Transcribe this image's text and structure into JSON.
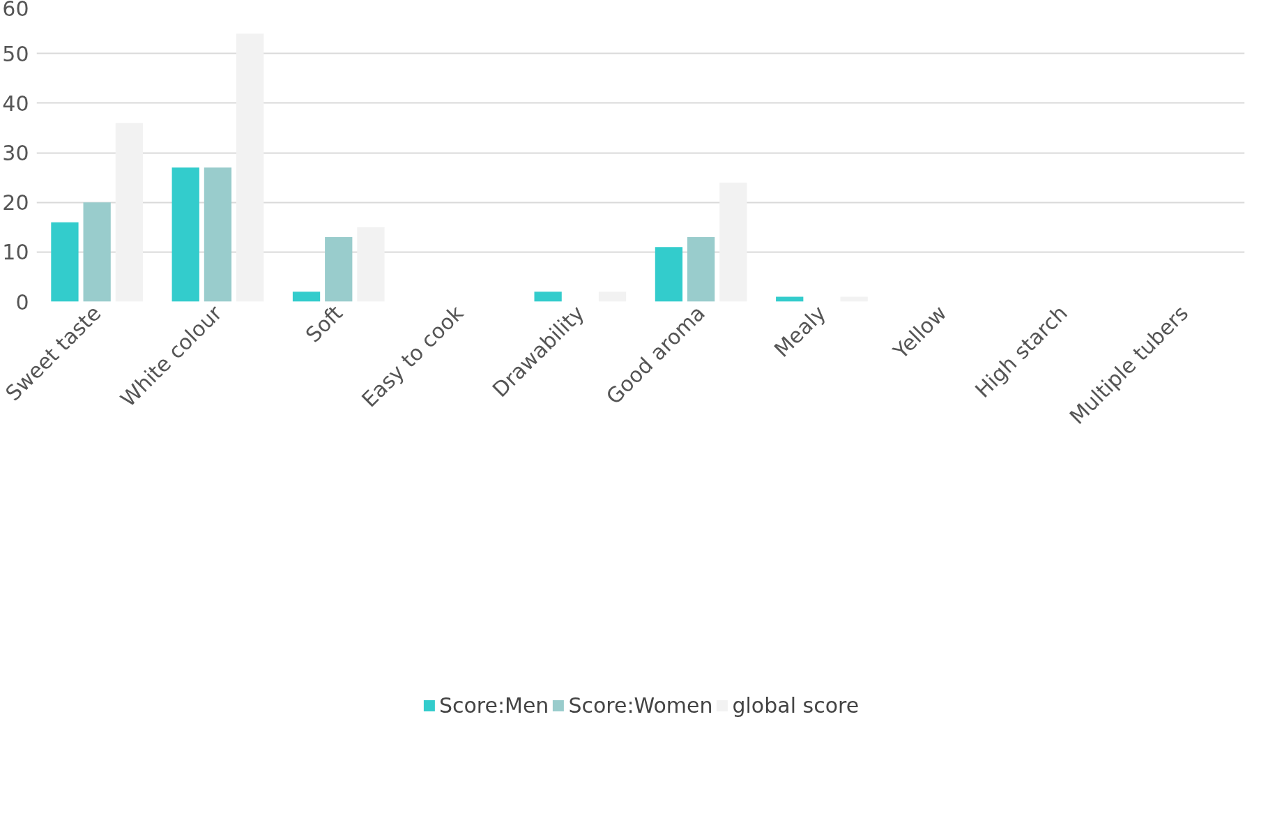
{
  "chart_data": {
    "type": "bar",
    "categories": [
      "Sweet taste",
      "White colour",
      "Soft",
      "Easy to cook",
      "Drawability",
      "Good aroma",
      "Mealy",
      "Yellow",
      "High starch",
      "Multiple tubers"
    ],
    "series": [
      {
        "name": "Score:Men",
        "color": "#33cccc",
        "values": [
          16,
          27,
          2,
          0,
          2,
          11,
          1,
          0,
          0,
          0
        ]
      },
      {
        "name": "Score:Women",
        "color": "#99cccc",
        "values": [
          20,
          27,
          13,
          0,
          0,
          13,
          0,
          0,
          0,
          0
        ]
      },
      {
        "name": "global score",
        "color": "#f2f2f2",
        "values": [
          36,
          54,
          15,
          0,
          2,
          24,
          1,
          0,
          0,
          0
        ]
      }
    ],
    "ylim": [
      0,
      60
    ],
    "yticks": [
      0,
      10,
      20,
      30,
      40,
      50,
      60
    ],
    "grid": "y",
    "legend": "bottom"
  }
}
